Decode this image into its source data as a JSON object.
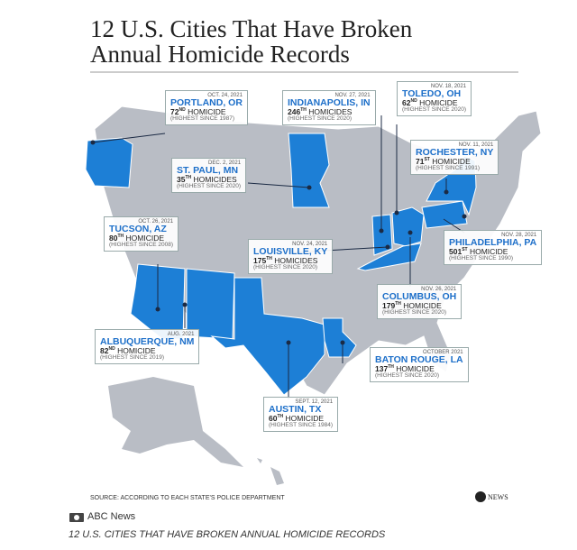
{
  "header": {
    "title": "12 U.S. Cities That Have Broken Annual Homicide Records"
  },
  "callouts": [
    {
      "date": "OCT. 24, 2021",
      "city": "PORTLAND, OR",
      "count": 72,
      "suffix": "ND",
      "noun": "HOMICIDE",
      "since": "(HIGHEST SINCE 1987)"
    },
    {
      "date": "NOV. 27, 2021",
      "city": "INDIANAPOLIS, IN",
      "count": 246,
      "suffix": "TH",
      "noun": "HOMICIDES",
      "since": "(HIGHEST SINCE 2020)"
    },
    {
      "date": "NOV. 18, 2021",
      "city": "TOLEDO, OH",
      "count": 62,
      "suffix": "ND",
      "noun": "HOMICIDE",
      "since": "(HIGHEST SINCE 2020)"
    },
    {
      "date": "DEC. 2, 2021",
      "city": "ST. PAUL, MN",
      "count": 35,
      "suffix": "TH",
      "noun": "HOMICIDES",
      "since": "(HIGHEST SINCE 2020)"
    },
    {
      "date": "NOV. 11, 2021",
      "city": "ROCHESTER, NY",
      "count": 71,
      "suffix": "ST",
      "noun": "HOMICIDE",
      "since": "(HIGHEST SINCE 1991)"
    },
    {
      "date": "OCT. 26, 2021",
      "city": "TUCSON, AZ",
      "count": 80,
      "suffix": "TH",
      "noun": "HOMICIDE",
      "since": "(HIGHEST SINCE 2008)"
    },
    {
      "date": "NOV. 24, 2021",
      "city": "LOUISVILLE, KY",
      "count": 175,
      "suffix": "TH",
      "noun": "HOMICIDES",
      "since": "(HIGHEST SINCE 2020)"
    },
    {
      "date": "NOV. 28, 2021",
      "city": "PHILADELPHIA, PA",
      "count": 501,
      "suffix": "ST",
      "noun": "HOMICIDE",
      "since": "(HIGHEST SINCE 1990)"
    },
    {
      "date": "NOV. 26, 2021",
      "city": "COLUMBUS, OH",
      "count": 179,
      "suffix": "TH",
      "noun": "HOMICIDE",
      "since": "(HIGHEST SINCE 2020)"
    },
    {
      "date": "AUG. 2021",
      "city": "ALBUQUERQUE, NM",
      "count": 82,
      "suffix": "ND",
      "noun": "HOMICIDE",
      "since": "(HIGHEST SINCE 2019)"
    },
    {
      "date": "OCTOBER 2021",
      "city": "BATON ROUGE, LA",
      "count": 137,
      "suffix": "TH",
      "noun": "HOMICIDE",
      "since": "(HIGHEST SINCE 2020)"
    },
    {
      "date": "SEPT. 12, 2021",
      "city": "AUSTIN, TX",
      "count": 60,
      "suffix": "TH",
      "noun": "HOMICIDE",
      "since": "(HIGHEST SINCE 1984)"
    }
  ],
  "footer": {
    "source": "SOURCE: ACCORDING TO EACH STATE'S POLICE DEPARTMENT",
    "logo": "NEWS"
  },
  "credit": "ABC News",
  "caption": "12 U.S. CITIES THAT HAVE BROKEN ANNUAL HOMICIDE RECORDS"
}
